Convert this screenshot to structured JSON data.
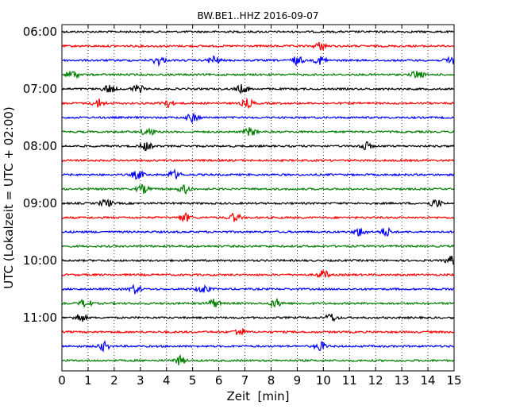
{
  "chart_data": {
    "type": "line",
    "title": "BW.BE1..HHZ 2016-09-07",
    "xlabel": "Zeit  [min]",
    "ylabel": "UTC (Lokalzeit = UTC + 02:00)",
    "xlim": [
      0,
      15
    ],
    "x_ticks": [
      "0",
      "1",
      "2",
      "3",
      "4",
      "5",
      "6",
      "7",
      "8",
      "9",
      "10",
      "11",
      "12",
      "13",
      "14",
      "15"
    ],
    "y_ticks": [
      "06:00",
      "07:00",
      "08:00",
      "09:00",
      "10:00",
      "11:00"
    ],
    "grid": "vertical dotted",
    "trace_colors": [
      "#000000",
      "#ff0000",
      "#0000ff",
      "#008000"
    ],
    "trace_start_times": [
      "06:00",
      "06:15",
      "06:30",
      "06:45",
      "07:00",
      "07:15",
      "07:30",
      "07:45",
      "08:00",
      "08:15",
      "08:30",
      "08:45",
      "09:00",
      "09:15",
      "09:30",
      "09:45",
      "10:00",
      "10:15",
      "10:30",
      "10:45",
      "11:00",
      "11:15",
      "11:30",
      "11:45"
    ],
    "events": [
      [],
      [
        9.9
      ],
      [
        3.7,
        5.8,
        9.0,
        9.9,
        14.9
      ],
      [
        0.4,
        13.6
      ],
      [
        1.8,
        2.9,
        6.9
      ],
      [
        1.4,
        4.0,
        7.1
      ],
      [
        5.0
      ],
      [
        3.3,
        7.2
      ],
      [
        3.2,
        11.6
      ],
      [],
      [
        2.9,
        4.3
      ],
      [
        3.1,
        4.7
      ],
      [
        1.7,
        14.3
      ],
      [
        4.7,
        6.6
      ],
      [
        11.4,
        12.4
      ],
      [],
      [
        14.9
      ],
      [
        10.0
      ],
      [
        2.8,
        5.4
      ],
      [
        0.9,
        5.8,
        8.2
      ],
      [
        0.7,
        10.3
      ],
      [
        6.8
      ],
      [
        1.6,
        9.9
      ],
      [
        4.5
      ]
    ]
  }
}
